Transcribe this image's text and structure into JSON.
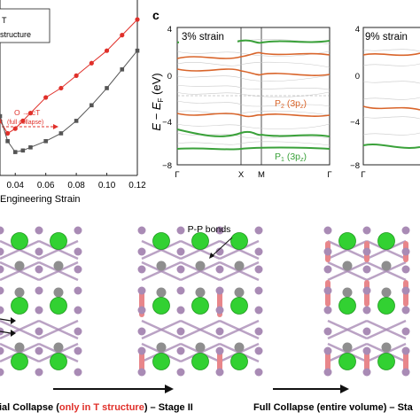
{
  "panel_b": {
    "legend_line1": "T",
    "legend_line2": "structure",
    "annotation": "O → cT",
    "annotation_sub": "(full collapse)",
    "xlabel": "Engineering Strain",
    "xticks": [
      "0.04",
      "0.06",
      "0.08",
      "0.10",
      "0.12"
    ]
  },
  "panel_c": {
    "label": "c",
    "ylabel": "E − E",
    "ylabel_sub": "F",
    "ylabel_unit": " (eV)",
    "yticks": [
      "4",
      "0",
      "−4",
      "−8"
    ],
    "xticks": [
      "Γ",
      "X",
      "M",
      "Γ"
    ],
    "left_title": "3% strain",
    "right_title": "9% strain",
    "right_yticks": [
      "4",
      "0",
      "−4",
      "−8"
    ],
    "right_xtick": "Γ",
    "p2_label": "P",
    "p2_sub": "2",
    "p2_orb": " (3p",
    "p2_orb_sub": "z",
    "p1_label": "P",
    "p1_sub": "1",
    "p1_orb": " (3p",
    "p1_orb_sub": "z",
    "close_paren": ")"
  },
  "bottom": {
    "pp_bonds": "P-P bonds",
    "stage2_prefix": "ial Collapse (",
    "stage2_highlight": "only in T structure",
    "stage2_suffix": ") – Stage II",
    "stage3_text": "Full Collapse (entire volume) – Sta"
  },
  "colors": {
    "red": "#e0302a",
    "dark": "#555555",
    "green": "#3aa13a",
    "orange": "#d9652b",
    "atom_green": "#32d132",
    "atom_purple": "#a98bb5",
    "atom_gray": "#8e8e8e",
    "bond_red": "#e8868a"
  },
  "chart_data": {
    "type": "line",
    "xlabel": "Engineering Strain",
    "xlim": [
      0.03,
      0.12
    ],
    "ylim": [
      0,
      1
    ],
    "series": [
      {
        "name": "T structure",
        "color": "#e0302a",
        "x": [
          0.03,
          0.035,
          0.04,
          0.045,
          0.05,
          0.06,
          0.07,
          0.08,
          0.09,
          0.1,
          0.11,
          0.12
        ],
        "y": [
          0.35,
          0.27,
          0.3,
          0.35,
          0.4,
          0.5,
          0.56,
          0.64,
          0.72,
          0.8,
          0.9,
          1.0
        ]
      },
      {
        "color": "#555555",
        "x": [
          0.03,
          0.035,
          0.04,
          0.045,
          0.05,
          0.06,
          0.07,
          0.08,
          0.09,
          0.1,
          0.11,
          0.12
        ],
        "y": [
          0.38,
          0.22,
          0.15,
          0.16,
          0.18,
          0.22,
          0.27,
          0.35,
          0.45,
          0.56,
          0.68,
          0.8
        ]
      }
    ]
  }
}
